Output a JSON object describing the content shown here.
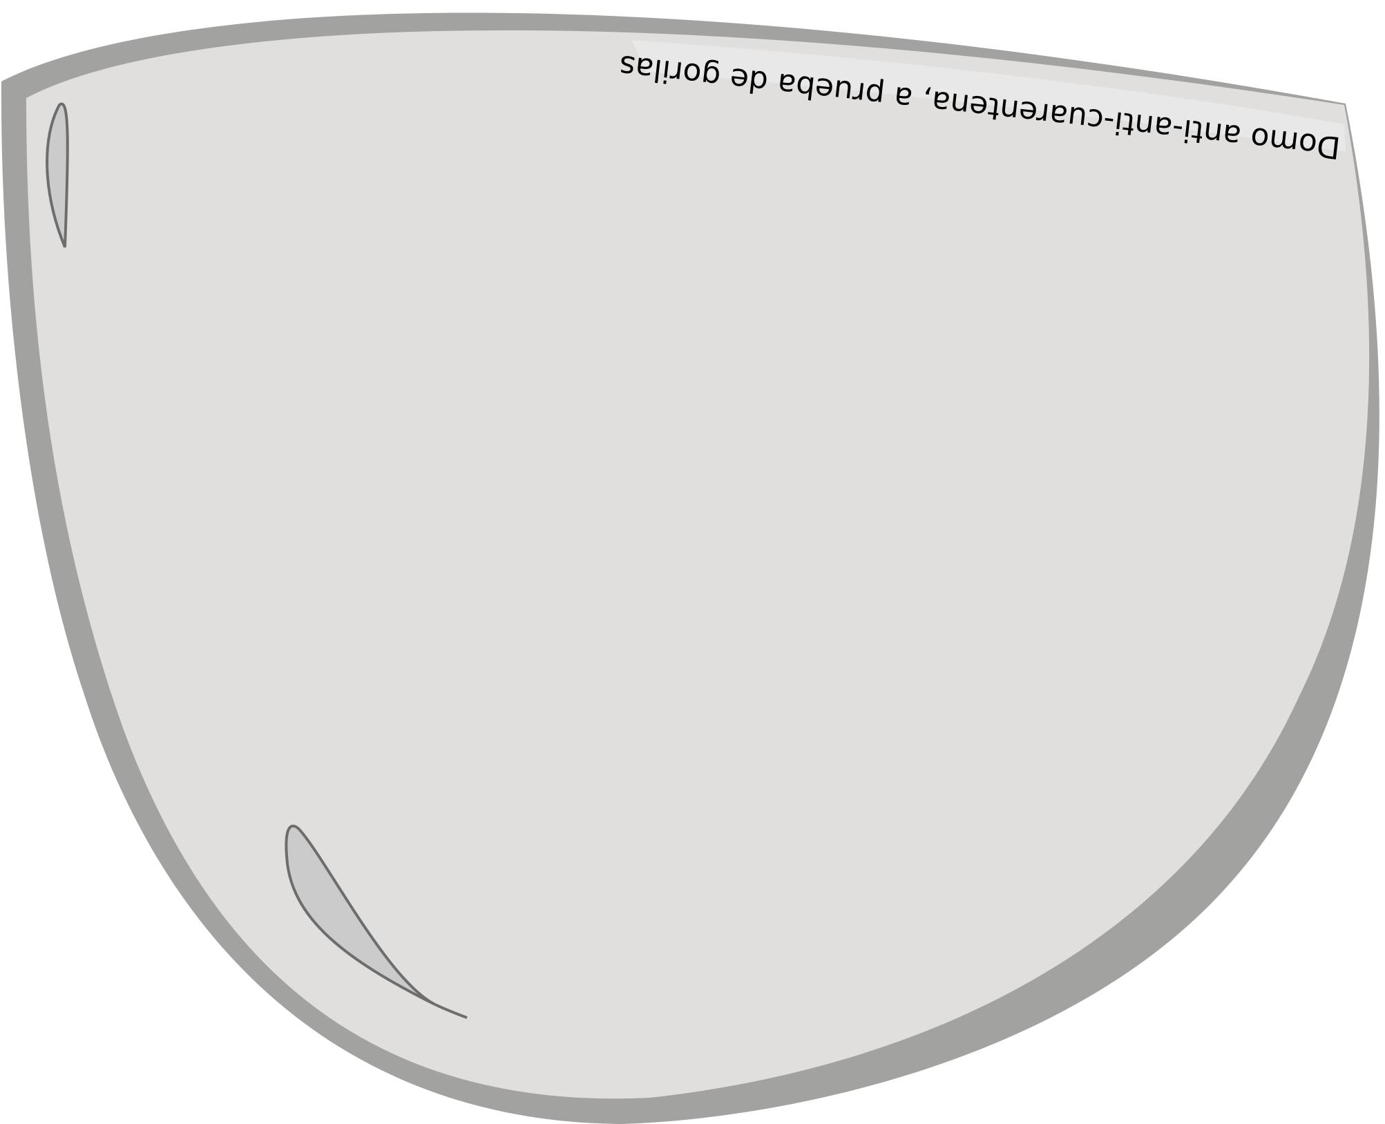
{
  "dome": {
    "label": "Domo anti-anti-cuarentena, a prueba de gorilas",
    "label_orientation": "upside-down",
    "colors": {
      "rim": "#a2a2a1",
      "glass": "#e0dfde",
      "label_band": "#e8e8e8",
      "highlight_fill": "#cbcbcb",
      "highlight_stroke": "#6d6d6d",
      "text": "#000000",
      "background": "#ffffff"
    }
  }
}
